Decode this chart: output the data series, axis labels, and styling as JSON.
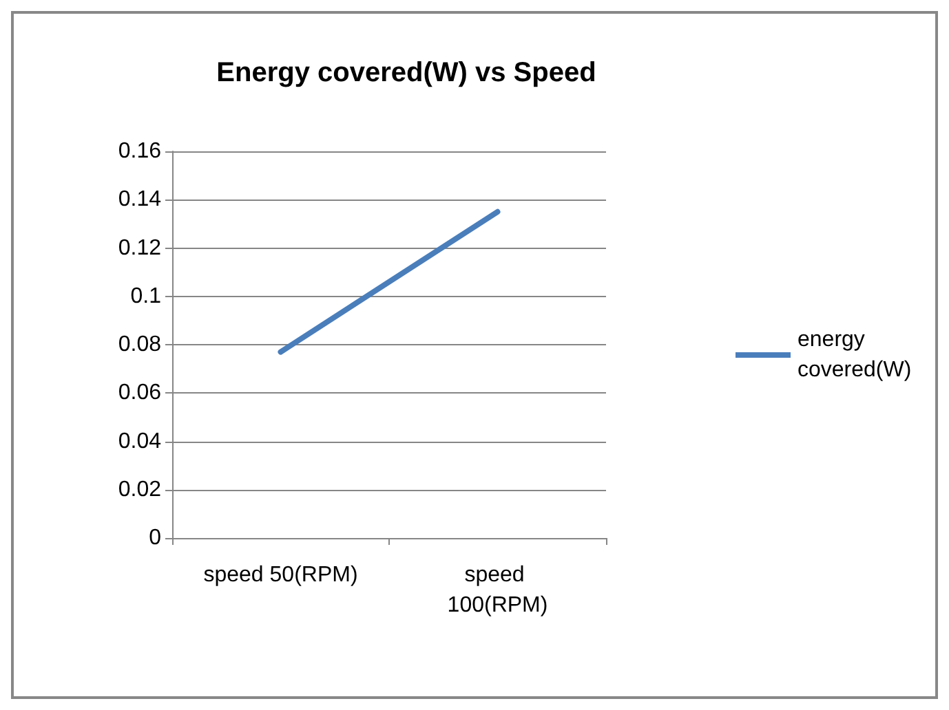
{
  "chart_data": {
    "type": "line",
    "title": "Energy covered(W) vs Speed",
    "categories": [
      "speed 50(RPM)",
      "speed 100(RPM)"
    ],
    "series": [
      {
        "name": "energy covered(W)",
        "color": "#4a7ebb",
        "values": [
          0.077,
          0.135
        ]
      }
    ],
    "ylim": [
      0,
      0.16
    ],
    "yticks": [
      0,
      0.02,
      0.04,
      0.06,
      0.08,
      0.1,
      0.12,
      0.14,
      0.16
    ],
    "grid": "y",
    "legend": "right",
    "marker": "none",
    "line_style": "solid"
  }
}
